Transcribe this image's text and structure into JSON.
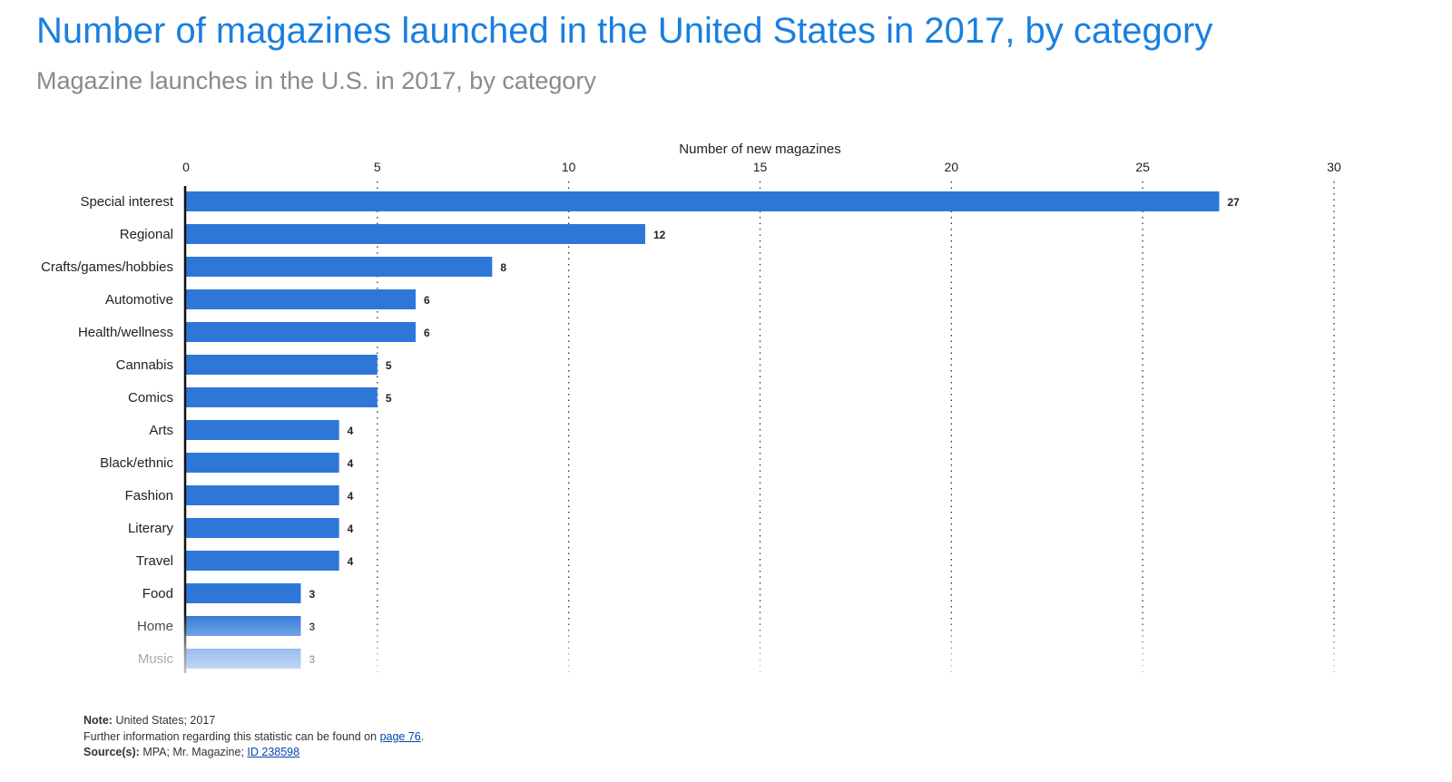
{
  "header": {
    "title": "Number of magazines launched in the United States in 2017, by category",
    "subtitle": "Magazine launches in the U.S. in 2017, by category"
  },
  "colors": {
    "bar": "#2e77d9",
    "title": "#1a7fe0",
    "subtitle": "#8a8a8a",
    "link": "#0645ad"
  },
  "chart_data": {
    "type": "bar",
    "orientation": "horizontal",
    "categories": [
      "Special interest",
      "Regional",
      "Crafts/games/hobbies",
      "Automotive",
      "Health/wellness",
      "Cannabis",
      "Comics",
      "Arts",
      "Black/ethnic",
      "Fashion",
      "Literary",
      "Travel",
      "Food",
      "Home",
      "Music"
    ],
    "values": [
      27,
      12,
      8,
      6,
      6,
      5,
      5,
      4,
      4,
      4,
      4,
      4,
      3,
      3,
      3
    ],
    "xlabel": "Number of new magazines",
    "ylabel": "",
    "xlim": [
      0,
      30
    ],
    "xticks": [
      "0",
      "5",
      "10",
      "15",
      "20",
      "25",
      "30"
    ],
    "grid": "vertical dotted",
    "x_axis_position": "top",
    "data_labels": true,
    "bottom_fade": true
  },
  "footer": {
    "note_label": "Note:",
    "note_text": "United States; 2017",
    "info_text": "Further information regarding this statistic can be found on",
    "info_link": "page 76",
    "info_end": ".",
    "source_label": "Source(s):",
    "source_text": "MPA; Mr. Magazine;",
    "source_link": "ID 238598"
  }
}
